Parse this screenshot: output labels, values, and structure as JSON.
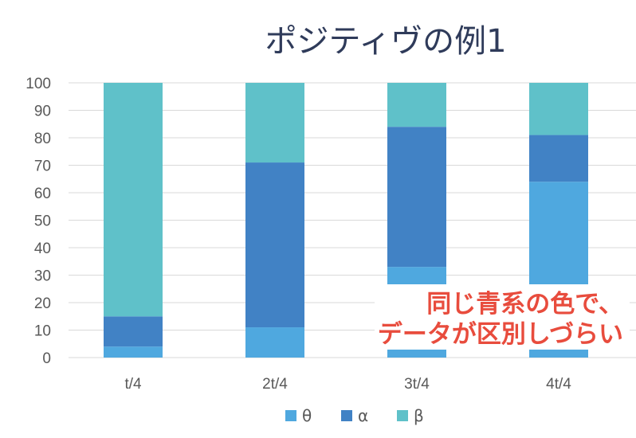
{
  "chart_data": {
    "type": "bar",
    "stacked": true,
    "title": "ポジティヴの例1",
    "categories": [
      "t/4",
      "2t/4",
      "3t/4",
      "4t/4"
    ],
    "series": [
      {
        "name": "θ",
        "color": "#4fa8df",
        "values": [
          4,
          11,
          33,
          64
        ]
      },
      {
        "name": "α",
        "color": "#4182c5",
        "values": [
          11,
          60,
          51,
          17
        ]
      },
      {
        "name": "β",
        "color": "#5fc1c9",
        "values": [
          85,
          29,
          16,
          19
        ]
      }
    ],
    "ylim": [
      0,
      100
    ],
    "yticks": [
      0,
      10,
      20,
      30,
      40,
      50,
      60,
      70,
      80,
      90,
      100
    ],
    "grid": true,
    "legend": "bottom",
    "annotation": [
      "同じ青系の色で、",
      "データが区別しづらい"
    ],
    "annotation_color": "#e84c3d"
  }
}
